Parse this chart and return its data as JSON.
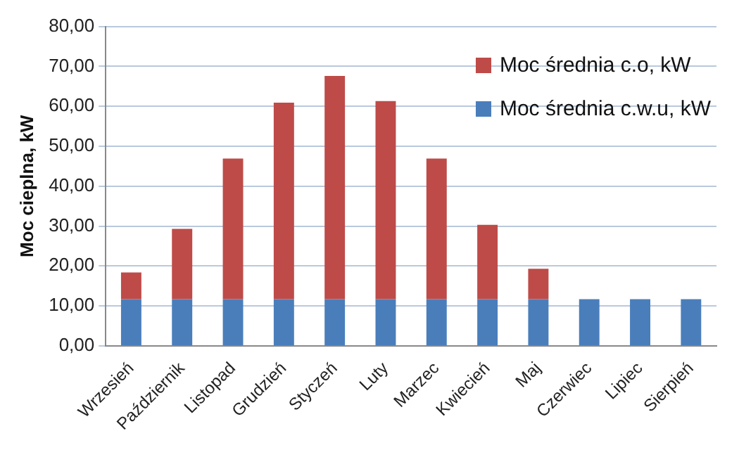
{
  "chart_data": {
    "type": "bar",
    "stacked": true,
    "ylabel": "Moc cieplna, kW",
    "categories": [
      "Wrzesień",
      "Październik",
      "Listopad",
      "Grudzień",
      "Styczeń",
      "Luty",
      "Marzec",
      "Kwiecień",
      "Maj",
      "Czerwiec",
      "Lipiec",
      "Sierpień"
    ],
    "series": [
      {
        "name": "Moc średnia c.w.u, kW",
        "color": "#4a7ebb",
        "values": [
          11.7,
          11.7,
          11.7,
          11.7,
          11.7,
          11.7,
          11.7,
          11.7,
          11.7,
          11.7,
          11.7,
          11.7
        ]
      },
      {
        "name": "Moc średnia c.o, kW",
        "color": "#be4b48",
        "values": [
          6.7,
          17.6,
          35.2,
          49.2,
          55.9,
          49.6,
          35.2,
          18.6,
          7.6,
          null,
          null,
          null
        ]
      }
    ],
    "ylim": [
      0,
      80
    ],
    "yticks": [
      {
        "value": 0,
        "label": "0,00"
      },
      {
        "value": 10,
        "label": "10,00"
      },
      {
        "value": 20,
        "label": "20,00"
      },
      {
        "value": 30,
        "label": "30,00"
      },
      {
        "value": 40,
        "label": "40,00"
      },
      {
        "value": 50,
        "label": "50,00"
      },
      {
        "value": 60,
        "label": "60,00"
      },
      {
        "value": 70,
        "label": "70,00"
      },
      {
        "value": 80,
        "label": "80,00"
      }
    ],
    "grid": "y",
    "legend": "top right"
  }
}
